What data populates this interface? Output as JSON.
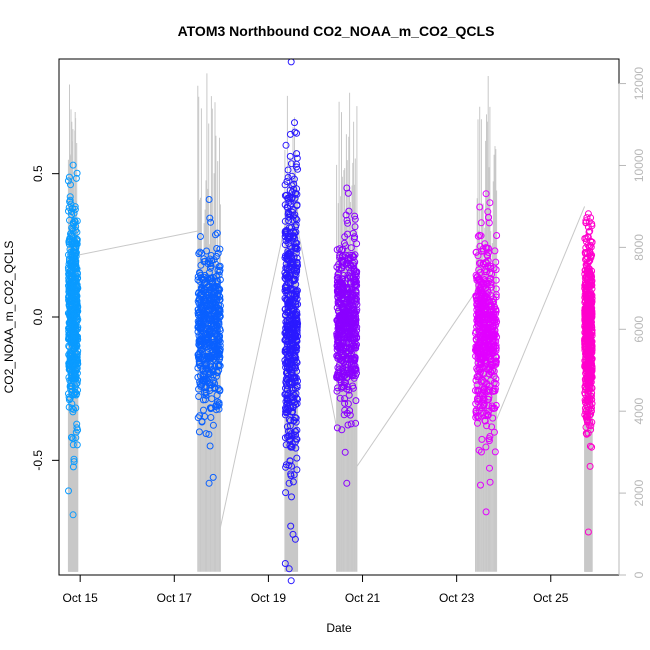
{
  "chart_data": {
    "type": "scatter",
    "title": "ATOM3 Northbound CO2_NOAA_m_CO2_QCLS",
    "xlabel": "Date",
    "ylabel": "CO2_NOAA_m_CO2_QCLS",
    "x_unit": "day of October 2017",
    "xlim": [
      14.55,
      26.45
    ],
    "ylim": [
      -0.9,
      0.9
    ],
    "y2lim": [
      0,
      12600
    ],
    "x_ticks": [
      {
        "value": 15,
        "label": "Oct 15"
      },
      {
        "value": 17,
        "label": "Oct 17"
      },
      {
        "value": 19,
        "label": "Oct 19"
      },
      {
        "value": 21,
        "label": "Oct 21"
      },
      {
        "value": 23,
        "label": "Oct 23"
      },
      {
        "value": 25,
        "label": "Oct 25"
      }
    ],
    "y_ticks": [
      {
        "value": 0.5,
        "label": "0.5"
      },
      {
        "value": 0.0,
        "label": "0.0"
      },
      {
        "value": -0.5,
        "label": "-0.5"
      }
    ],
    "y2_ticks": [
      {
        "value": 0,
        "label": "0"
      },
      {
        "value": 2000,
        "label": "2000"
      },
      {
        "value": 4000,
        "label": "4000"
      },
      {
        "value": 6000,
        "label": "6000"
      },
      {
        "value": 8000,
        "label": "8000"
      },
      {
        "value": 10000,
        "label": "10000"
      },
      {
        "value": 12000,
        "label": "12000"
      }
    ],
    "grid": false,
    "legend": "none",
    "altitude_color": "#c8c8c8",
    "series": [
      {
        "x_start": 14.75,
        "x_end": 14.95,
        "y_min": -0.69,
        "y_max": 0.53,
        "y_center": 0.0,
        "color": "#0a9bff",
        "alt_max": 12000
      },
      {
        "x_start": 17.5,
        "x_end": 17.98,
        "y_min": -0.58,
        "y_max": 0.41,
        "y_center": -0.05,
        "color": "#0a60ff",
        "alt_max": 12400
      },
      {
        "x_start": 19.35,
        "x_end": 19.62,
        "y_min": -0.92,
        "y_max": 0.89,
        "y_center": 0.0,
        "color": "#2a1aff",
        "alt_max": 12000
      },
      {
        "x_start": 20.45,
        "x_end": 20.88,
        "y_min": -0.58,
        "y_max": 0.45,
        "y_center": -0.03,
        "color": "#8a00ff",
        "alt_max": 11800
      },
      {
        "x_start": 23.4,
        "x_end": 23.85,
        "y_min": -0.68,
        "y_max": 0.43,
        "y_center": -0.05,
        "color": "#e100ff",
        "alt_max": 12200
      },
      {
        "x_start": 25.72,
        "x_end": 25.88,
        "y_min": -0.75,
        "y_max": 0.36,
        "y_center": -0.05,
        "color": "#ff00cc",
        "alt_max": 7700
      }
    ],
    "transits": [
      {
        "from_x": 14.9,
        "from_alt": 7800,
        "to_x": 17.5,
        "to_alt": 8400
      },
      {
        "from_x": 17.95,
        "from_alt": 1000,
        "to_x": 19.4,
        "to_alt": 8800
      },
      {
        "from_x": 19.6,
        "from_alt": 8600,
        "to_x": 20.45,
        "to_alt": 3600
      },
      {
        "from_x": 20.85,
        "from_alt": 2600,
        "to_x": 23.45,
        "to_alt": 7000
      },
      {
        "from_x": 23.85,
        "from_alt": 3800,
        "to_x": 25.72,
        "to_alt": 9000
      }
    ]
  }
}
